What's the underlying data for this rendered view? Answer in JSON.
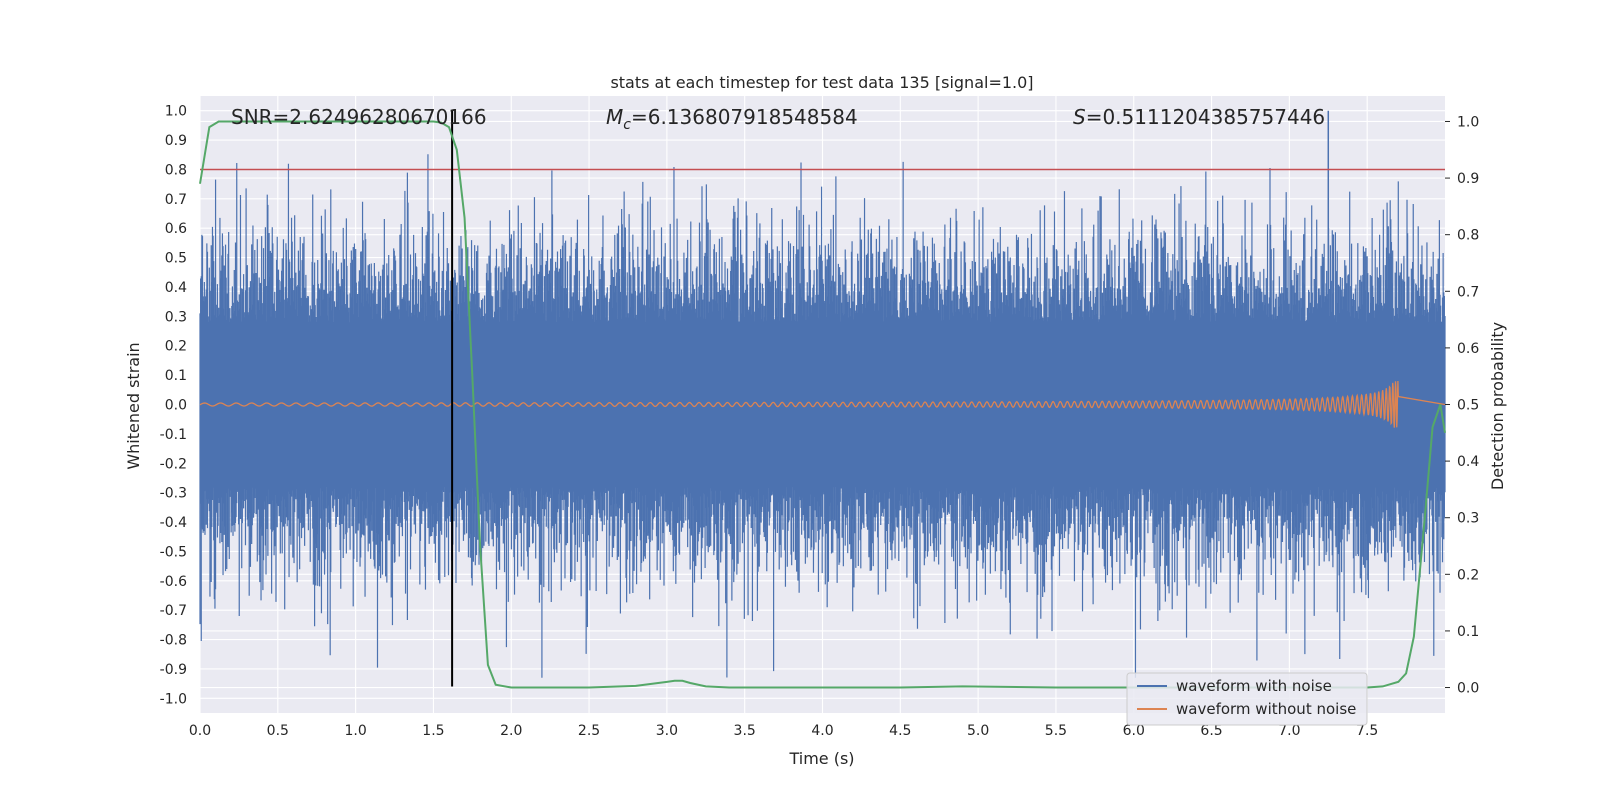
{
  "chart_data": {
    "type": "line",
    "title": "stats at each timestep for test data 135 [signal=1.0]",
    "xlabel": "Time (s)",
    "ylabel": "Whitened strain",
    "y2label": "Detection probability",
    "xlim": [
      0,
      8
    ],
    "ylim": [
      -1.05,
      1.05
    ],
    "y2lim": [
      -0.045,
      1.045
    ],
    "x_ticks": [
      "0.0",
      "0.5",
      "1.0",
      "1.5",
      "2.0",
      "2.5",
      "3.0",
      "3.5",
      "4.0",
      "4.5",
      "5.0",
      "5.5",
      "6.0",
      "6.5",
      "7.0",
      "7.5"
    ],
    "y_ticks": [
      "1.0",
      "0.9",
      "0.8",
      "0.7",
      "0.6",
      "0.5",
      "0.4",
      "0.3",
      "0.2",
      "0.1",
      "0.0",
      "-0.1",
      "-0.2",
      "-0.3",
      "-0.4",
      "-0.5",
      "-0.6",
      "-0.7",
      "-0.8",
      "-0.9",
      "-1.0"
    ],
    "y2_ticks": [
      "1.0",
      "0.9",
      "0.8",
      "0.7",
      "0.6",
      "0.5",
      "0.4",
      "0.3",
      "0.2",
      "0.1",
      "0.0"
    ],
    "annotations": {
      "snr": "SNR=2.62496280670166",
      "mc_prefix": "M",
      "mc_sub": "c",
      "mc_value": "=6.136807918548584",
      "s_prefix": "S",
      "s_value": "=0.5111204385757446"
    },
    "threshold_y": 0.8,
    "vline_x": 1.62,
    "noise_series": {
      "name": "waveform with noise",
      "color": "#4c72b0",
      "x_range": [
        0,
        8
      ],
      "num_samples": 2000,
      "envelope_typical": 0.45,
      "max": 1.0,
      "min": -0.93
    },
    "signal_series": {
      "name": "waveform without noise",
      "color": "#dd8452",
      "x_range": [
        0,
        7.7
      ],
      "amplitude_start": 0.005,
      "amplitude_end": 0.08,
      "merger_time": 7.7
    },
    "probability_series": {
      "name": "Detection probability",
      "color": "#55a868",
      "x": [
        0.0,
        0.06,
        0.12,
        0.5,
        1.0,
        1.5,
        1.55,
        1.6,
        1.65,
        1.7,
        1.75,
        1.8,
        1.85,
        1.9,
        2.0,
        2.5,
        2.8,
        3.0,
        3.05,
        3.1,
        3.15,
        3.25,
        3.4,
        4.0,
        4.5,
        4.9,
        5.5,
        6.0,
        6.5,
        7.0,
        7.5,
        7.6,
        7.7,
        7.75,
        7.8,
        7.87,
        7.92,
        7.97,
        8.0
      ],
      "y": [
        0.89,
        0.99,
        1.0,
        1.0,
        1.0,
        1.0,
        0.998,
        0.99,
        0.95,
        0.83,
        0.55,
        0.25,
        0.04,
        0.005,
        0.0,
        0.0,
        0.003,
        0.01,
        0.012,
        0.012,
        0.008,
        0.002,
        0.0,
        0.0,
        0.0,
        0.002,
        0.0,
        0.0,
        0.0,
        0.0,
        0.0,
        0.002,
        0.01,
        0.025,
        0.09,
        0.3,
        0.46,
        0.5,
        0.45
      ]
    },
    "legend": {
      "position": "lower-right",
      "entries": [
        {
          "label": "waveform with noise",
          "color": "#4c72b0"
        },
        {
          "label": "waveform without noise",
          "color": "#dd8452"
        }
      ]
    },
    "colors": {
      "background": "#eaeaf2",
      "grid": "#ffffff",
      "threshold": "#c44e52",
      "vline": "#000000"
    }
  }
}
